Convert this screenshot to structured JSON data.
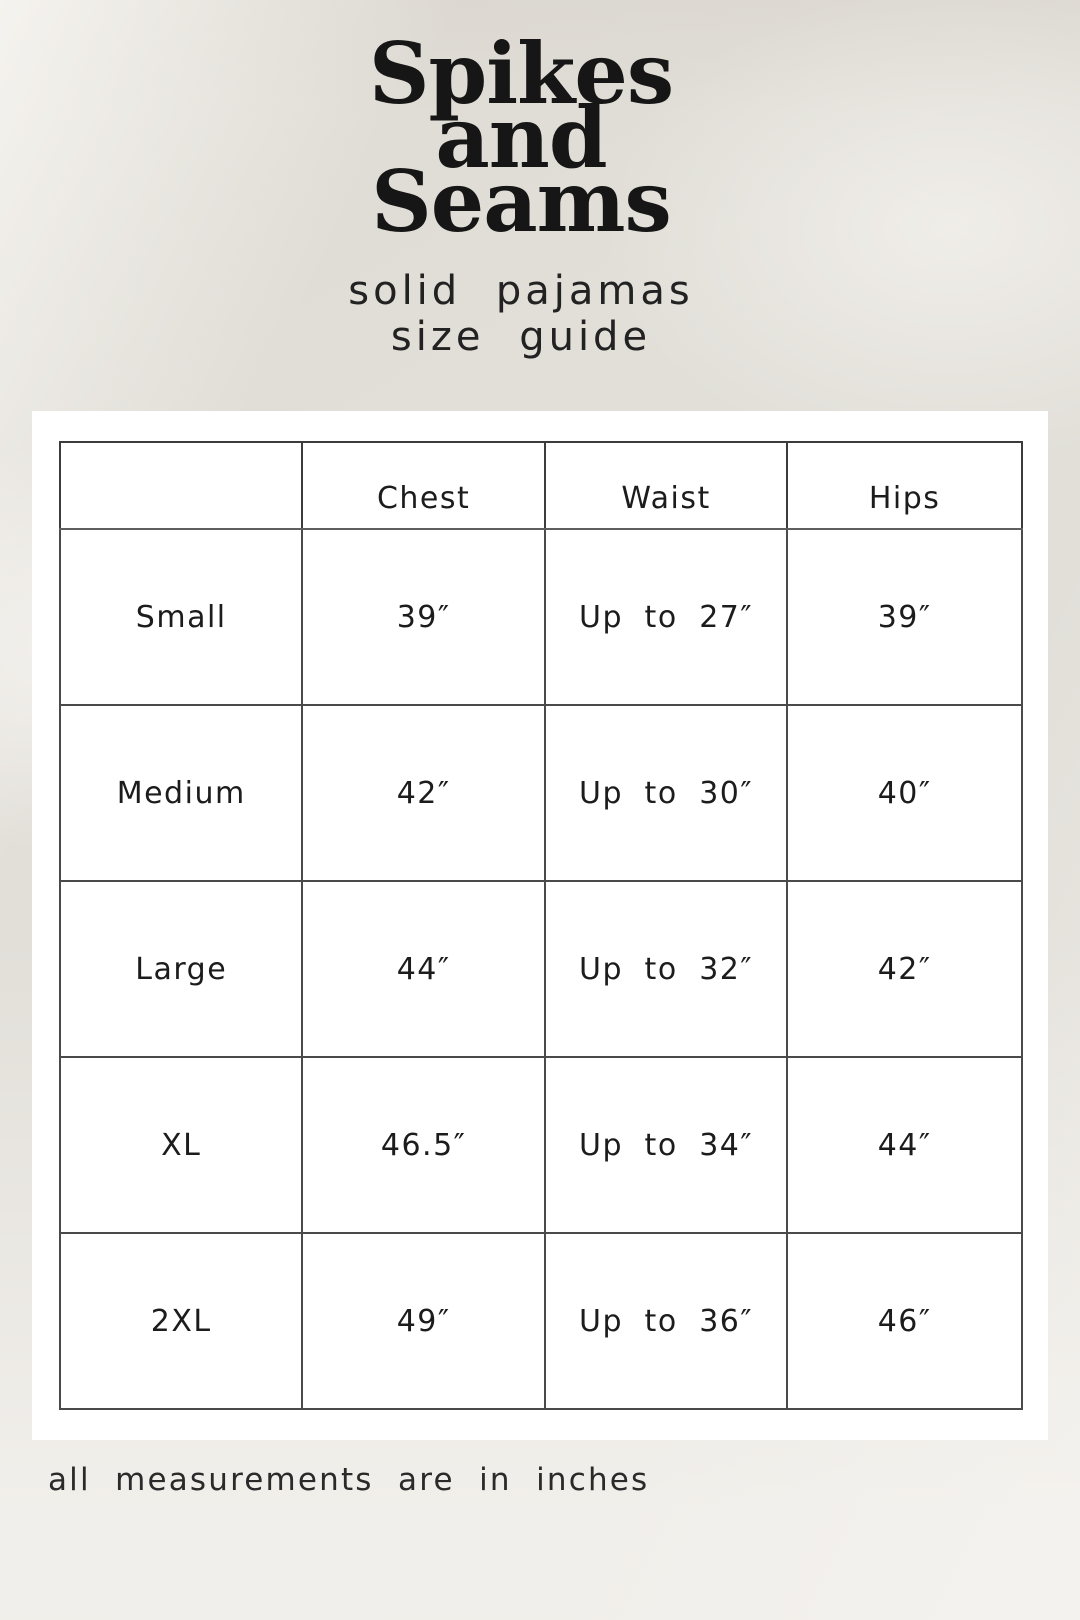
{
  "brand": {
    "logo_line1": "Spikes",
    "logo_line2": "and",
    "logo_line3": "Seams",
    "subtitle_line1": "solid pajamas",
    "subtitle_line2": "size guide"
  },
  "table": {
    "headers": [
      "",
      "Chest",
      "Waist",
      "Hips"
    ],
    "rows": [
      {
        "size": "Small",
        "chest": "39″",
        "waist": "Up to 27″",
        "hips": "39″"
      },
      {
        "size": "Medium",
        "chest": "42″",
        "waist": "Up to 30″",
        "hips": "40″"
      },
      {
        "size": "Large",
        "chest": "44″",
        "waist": "Up to 32″",
        "hips": "42″"
      },
      {
        "size": "XL",
        "chest": "46.5″",
        "waist": "Up to 34″",
        "hips": "44″"
      },
      {
        "size": "2XL",
        "chest": "49″",
        "waist": "Up to 36″",
        "hips": "46″"
      }
    ]
  },
  "footer": {
    "note": "all measurements are in inches"
  },
  "colors": {
    "background": "#e2dfd9",
    "card": "#ffffff",
    "text": "#1a1a1a",
    "table_border_outer": "#161616",
    "table_border_inner": "#4a4a4a"
  }
}
